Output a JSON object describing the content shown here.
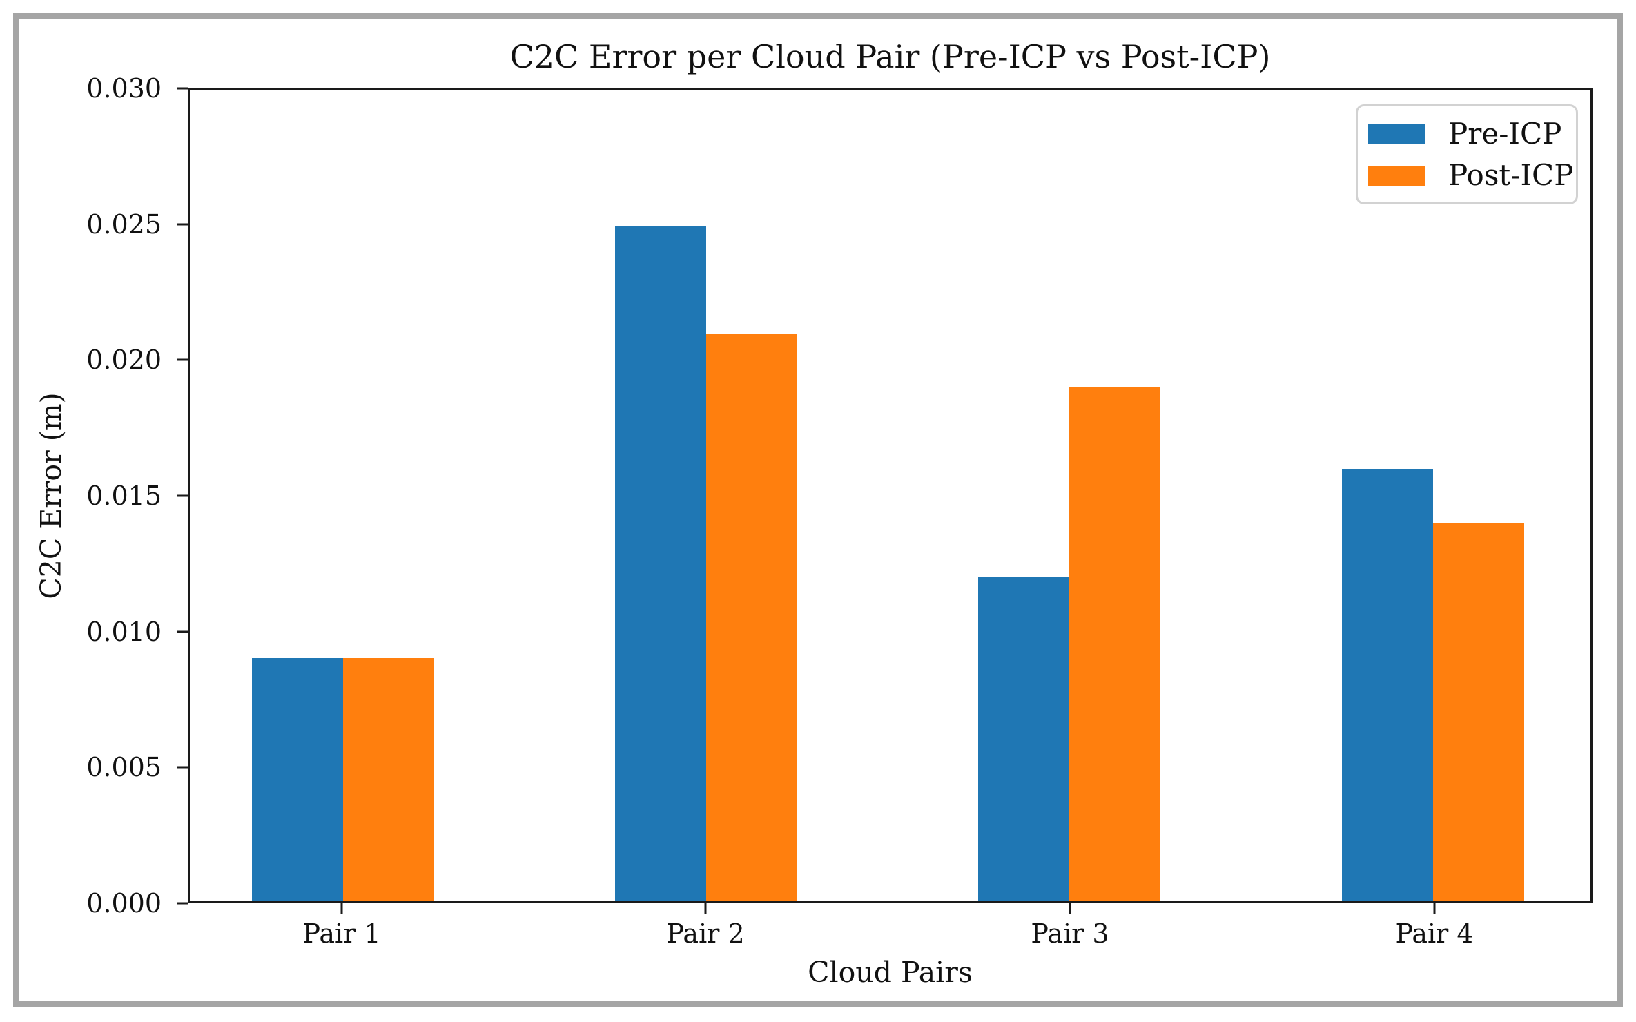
{
  "figure": {
    "frame_border_color": "#a5a5a5",
    "background_color": "#ffffff",
    "axis_color": "#1a1a1a",
    "text_color": "#111111"
  },
  "chart_data": {
    "type": "bar",
    "title": "C2C Error per Cloud Pair (Pre-ICP vs Post-ICP)",
    "xlabel": "Cloud Pairs",
    "ylabel": "C2C Error (m)",
    "categories": [
      "Pair 1",
      "Pair 2",
      "Pair 3",
      "Pair 4"
    ],
    "series": [
      {
        "name": "Pre-ICP",
        "color": "#1f77b4",
        "values": [
          0.009,
          0.025,
          0.012,
          0.016
        ]
      },
      {
        "name": "Post-ICP",
        "color": "#ff7f0e",
        "values": [
          0.009,
          0.021,
          0.019,
          0.014
        ]
      }
    ],
    "ylim": [
      0,
      0.03
    ],
    "ytick_labels": [
      "0.000",
      "0.005",
      "0.010",
      "0.015",
      "0.020",
      "0.025",
      "0.030"
    ],
    "grid": false,
    "legend_position": "upper right",
    "layout": {
      "bar_centers_pct": [
        10.96,
        36.86,
        62.8,
        88.75
      ],
      "bar_width_pct": 6.5
    }
  }
}
